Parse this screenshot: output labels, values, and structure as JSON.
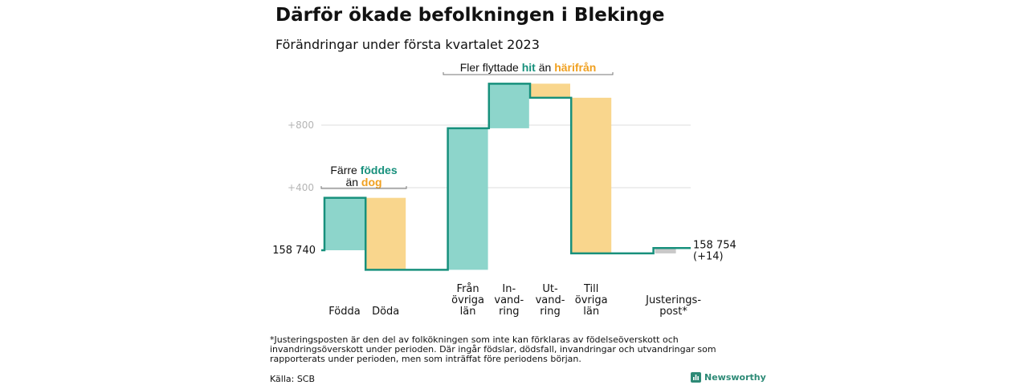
{
  "title": "Därför ökade befolkningen i Blekinge",
  "subtitle": "Förändringar under första kvartalet 2023",
  "colors": {
    "increase": "#8dd5cb",
    "decrease": "#f9d68d",
    "adjustment": "#c8c8c8",
    "step_line": "#17907c",
    "teal_text": "#17907c",
    "orange_text": "#f0a020",
    "grid": "#dddddd"
  },
  "chart_data": {
    "type": "waterfall",
    "start_label": "158 740",
    "end_label": [
      "158 754",
      "(+14)"
    ],
    "start_value": 0,
    "ylim": [
      -150,
      1120
    ],
    "yticks": [
      {
        "value": 400,
        "label": "+400"
      },
      {
        "value": 800,
        "label": "+800"
      }
    ],
    "steps": [
      {
        "category": [
          "Födda"
        ],
        "start": 0,
        "end": 335,
        "kind": "increase"
      },
      {
        "category": [
          "Döda"
        ],
        "start": 335,
        "end": -125,
        "kind": "decrease"
      },
      {
        "category": [
          "Från",
          "övriga",
          "län"
        ],
        "start": -125,
        "end": 780,
        "kind": "increase"
      },
      {
        "category": [
          "In-",
          "vand-",
          "ring"
        ],
        "start": 780,
        "end": 1065,
        "kind": "increase"
      },
      {
        "category": [
          "Ut-",
          "vand-",
          "ring"
        ],
        "start": 1065,
        "end": 975,
        "kind": "decrease"
      },
      {
        "category": [
          "Till",
          "övriga",
          "län"
        ],
        "start": 975,
        "end": -20,
        "kind": "decrease"
      },
      {
        "category": [
          "Justerings-",
          "post*"
        ],
        "start": -20,
        "end": 14,
        "kind": "adjustment"
      }
    ],
    "annotations": [
      {
        "lines": [
          [
            {
              "t": "Färre ",
              "c": "dark"
            },
            {
              "t": "föddes",
              "c": "teal"
            }
          ],
          [
            {
              "t": "än ",
              "c": "dark"
            },
            {
              "t": "dog",
              "c": "orange"
            }
          ]
        ],
        "from_step": 0,
        "to_step": 1
      },
      {
        "lines": [
          [
            {
              "t": "Fler flyttade ",
              "c": "dark"
            },
            {
              "t": "hit",
              "c": "teal"
            },
            {
              "t": " än ",
              "c": "dark"
            },
            {
              "t": "härifrån",
              "c": "orange"
            }
          ]
        ],
        "from_step": 2,
        "to_step": 5
      }
    ]
  },
  "footnote": "*Justeringsposten är den del av folkökningen som inte kan förklaras av födelseöverskott och invandringsöverskott under perioden. Där ingår födslar, dödsfall, invandringar och utvandringar som rapporterats under perioden, men som inträffat före periodens början.",
  "source": "Källa: SCB",
  "brand": "Newsworthy"
}
